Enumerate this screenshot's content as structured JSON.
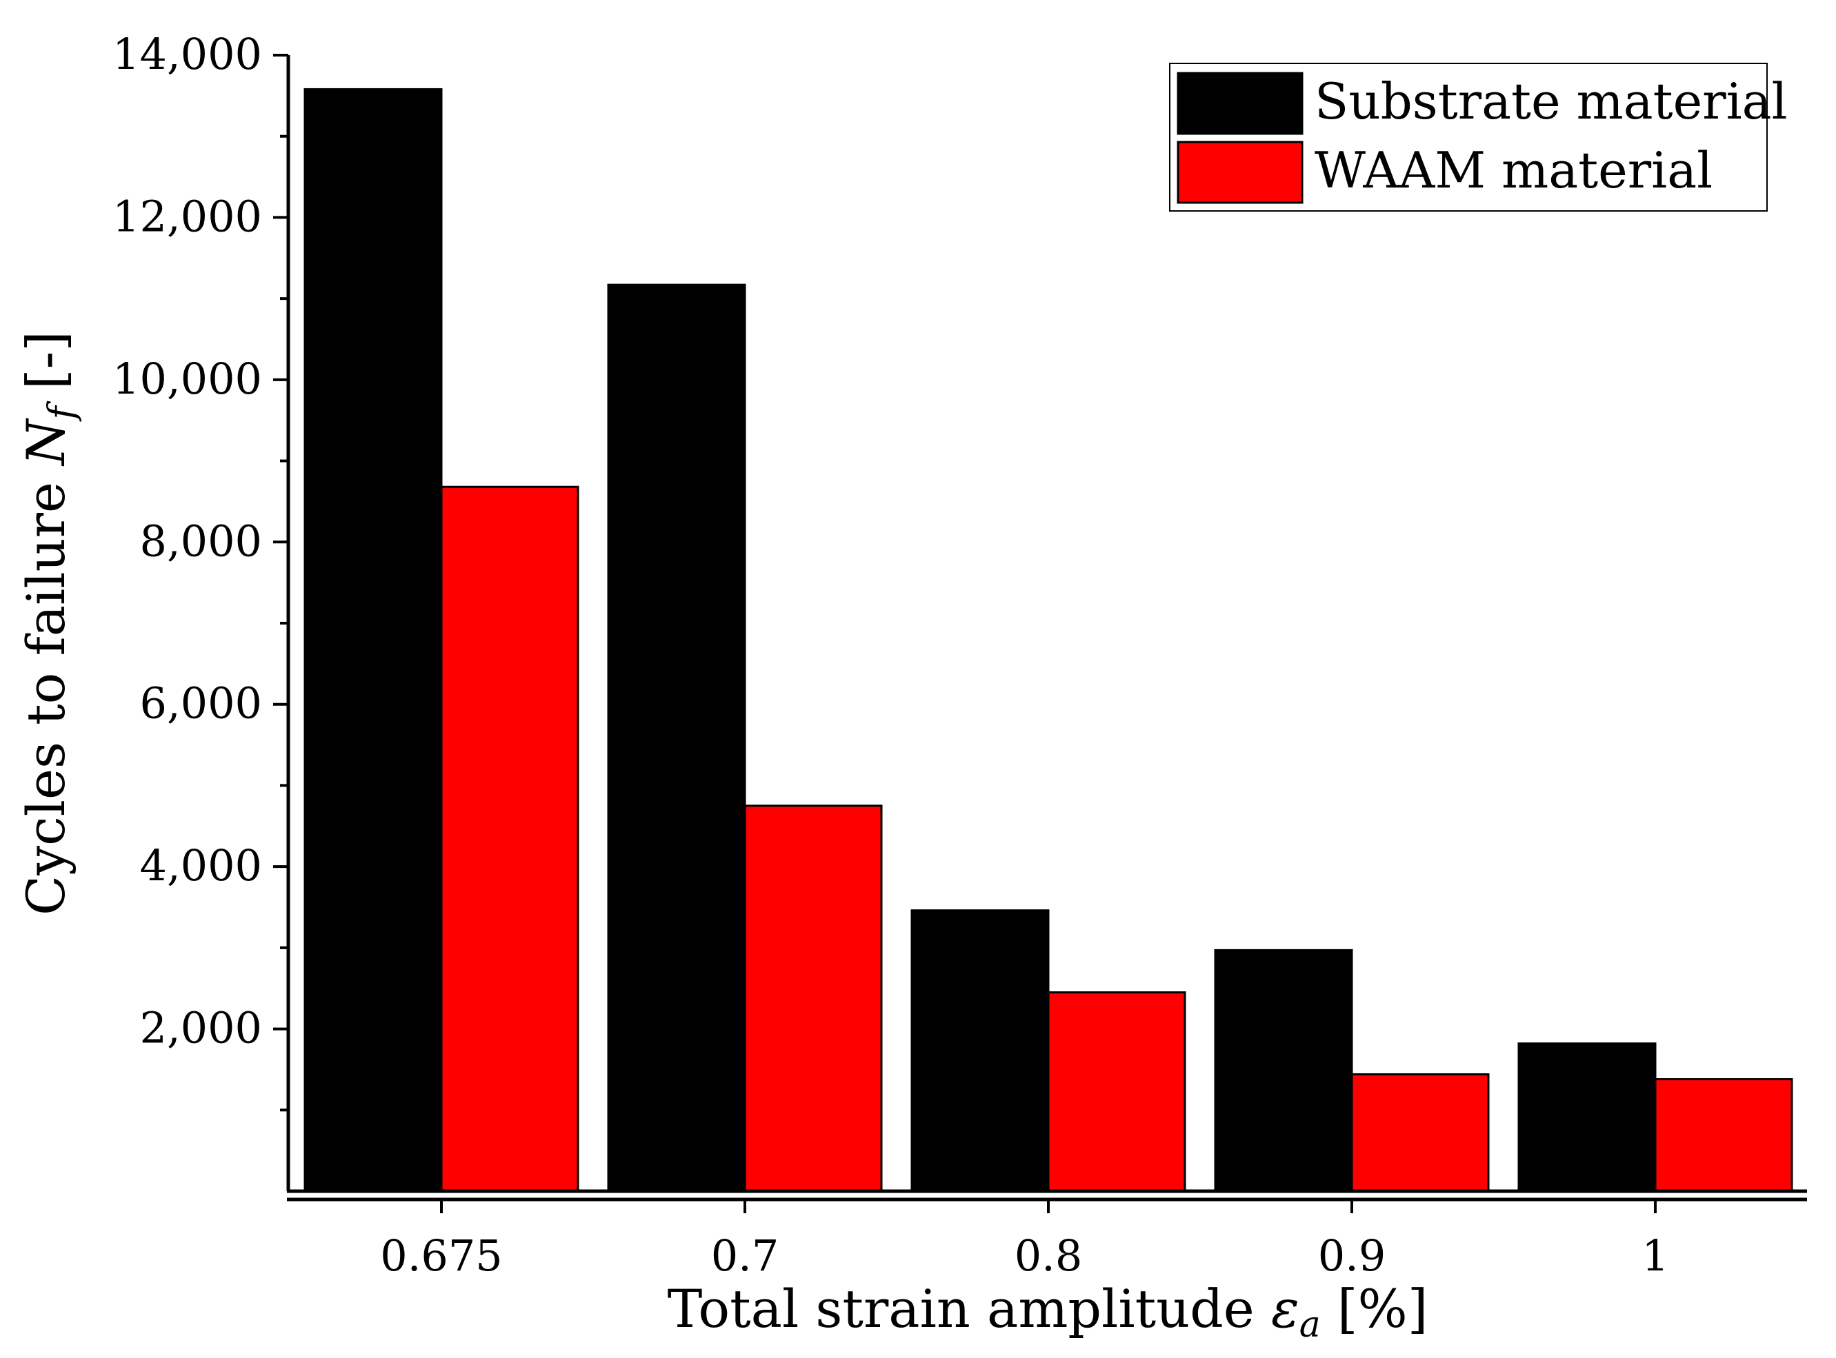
{
  "chart_data": {
    "type": "bar",
    "categories": [
      "0.675",
      "0.7",
      "0.8",
      "0.9",
      "1"
    ],
    "series": [
      {
        "name": "Substrate material",
        "color": "#000000",
        "values": [
          13580,
          11170,
          3460,
          2970,
          1820
        ]
      },
      {
        "name": "WAAM material",
        "color": "#ff0000",
        "values": [
          8680,
          4750,
          2450,
          1440,
          1380
        ]
      }
    ],
    "xlabel": {
      "main": "Total strain amplitude ",
      "symbol": "ε",
      "subscript": "a",
      "unit": " [%]"
    },
    "ylabel": {
      "main": "Cycles to failure ",
      "symbol": "N",
      "subscript": "f",
      "unit": " [-]"
    },
    "ylim": [
      0,
      14000
    ],
    "yticks": [
      2000,
      4000,
      6000,
      8000,
      10000,
      12000,
      14000
    ],
    "ytick_labels": [
      "2,000",
      "4,000",
      "6,000",
      "8,000",
      "10,000",
      "12,000",
      "14,000"
    ],
    "legend_position": "top-right",
    "grid": false
  }
}
